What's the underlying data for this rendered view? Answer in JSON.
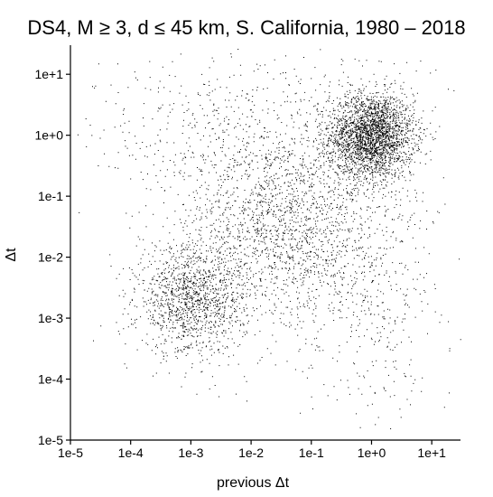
{
  "chart_data": {
    "type": "scatter",
    "title": "DS4, M ≥ 3, d ≤ 45 km, S. California, 1980 – 2018",
    "xlabel": "previous Δt",
    "ylabel": "Δt",
    "x_scale": "log10",
    "y_scale": "log10",
    "xlim": [
      1e-05,
      30
    ],
    "ylim": [
      1e-05,
      30
    ],
    "x_ticks": [
      1e-05,
      0.0001,
      0.001,
      0.01,
      0.1,
      1,
      10
    ],
    "x_tick_labels": [
      "1e-5",
      "1e-4",
      "1e-3",
      "1e-2",
      "1e-1",
      "1e+0",
      "1e+1"
    ],
    "y_ticks": [
      1e-05,
      0.0001,
      0.001,
      0.01,
      0.1,
      1,
      10
    ],
    "y_tick_labels": [
      "1e-5",
      "1e-4",
      "1e-3",
      "1e-2",
      "1e-1",
      "1e+0",
      "1e+1"
    ],
    "grid": false,
    "point_color": "#000000",
    "clusters": [
      {
        "center": [
          1.0,
          1.0
        ],
        "log_sd": [
          0.35,
          0.35
        ],
        "n": 2600
      },
      {
        "center": [
          0.001,
          0.002
        ],
        "log_sd": [
          0.45,
          0.45
        ],
        "n": 1300
      },
      {
        "center": [
          0.03,
          0.03
        ],
        "log_sd": [
          0.8,
          0.8
        ],
        "n": 1700
      },
      {
        "center": [
          0.01,
          1.0
        ],
        "log_sd": [
          1.3,
          0.7
        ],
        "n": 600
      },
      {
        "center": [
          1.0,
          0.005
        ],
        "log_sd": [
          0.6,
          1.2
        ],
        "n": 500
      }
    ]
  }
}
